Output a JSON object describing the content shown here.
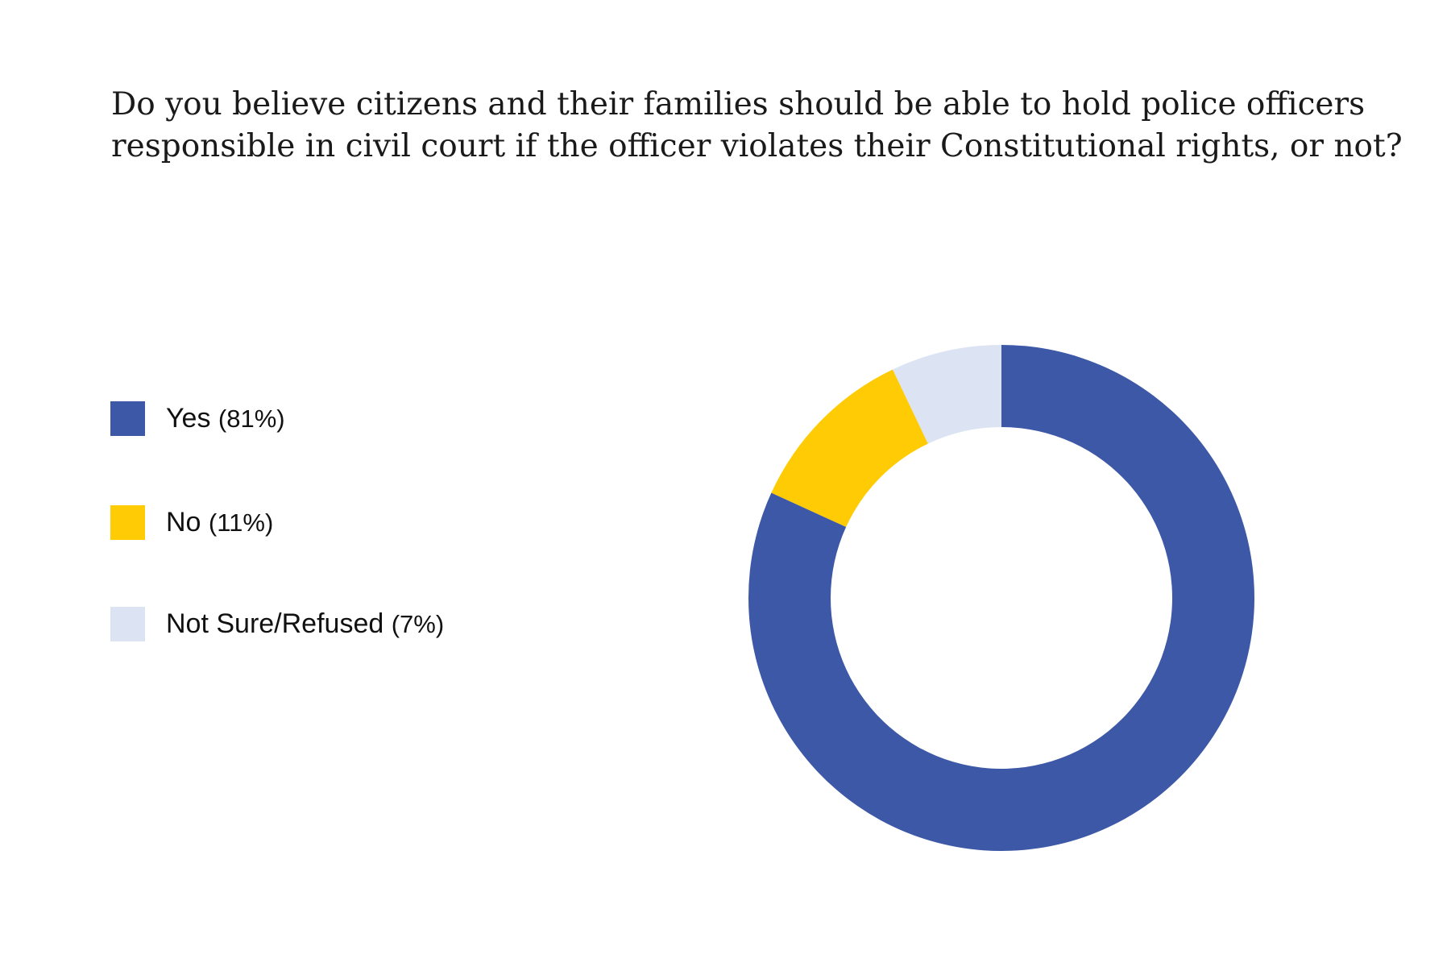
{
  "chart_data": {
    "type": "pie",
    "title_lines": [
      "Do you believe citizens and their families should be able to hold police officers",
      "responsible in civil court if the officer violates their Constitutional rights, or not?"
    ],
    "donut": true,
    "legend_placement": "left",
    "slices": [
      {
        "label": "Yes",
        "pct_label": "(81%)",
        "value": 81,
        "color": "#3c58a6"
      },
      {
        "label": "No",
        "pct_label": "(11%)",
        "value": 11,
        "color": "#fecb05"
      },
      {
        "label": "Not Sure/Refused",
        "pct_label": "(7%)",
        "value": 7,
        "color": "#dce3f3"
      }
    ]
  }
}
